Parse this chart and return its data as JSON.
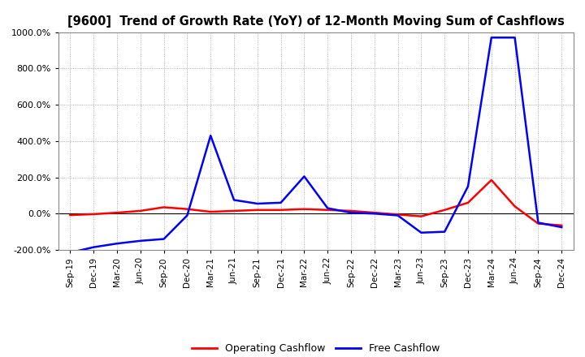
{
  "title": "[9600]  Trend of Growth Rate (YoY) of 12-Month Moving Sum of Cashflows",
  "ylim": [
    -200,
    1000
  ],
  "yticks": [
    -200,
    0,
    200,
    400,
    600,
    800,
    1000
  ],
  "background_color": "#ffffff",
  "grid_color": "#999999",
  "operating_color": "#ff0000",
  "free_color": "#0000ff",
  "legend_labels": [
    "Operating Cashflow",
    "Free Cashflow"
  ],
  "x_labels": [
    "Sep-19",
    "Dec-19",
    "Mar-20",
    "Jun-20",
    "Sep-20",
    "Dec-20",
    "Mar-21",
    "Jun-21",
    "Sep-21",
    "Dec-21",
    "Mar-22",
    "Jun-22",
    "Sep-22",
    "Dec-22",
    "Mar-23",
    "Jun-23",
    "Sep-23",
    "Dec-23",
    "Mar-24",
    "Jun-24",
    "Sep-24",
    "Dec-24"
  ],
  "operating_cashflow": [
    -8,
    -3,
    5,
    15,
    35,
    25,
    10,
    15,
    20,
    20,
    25,
    20,
    15,
    5,
    -5,
    -15,
    20,
    60,
    185,
    40,
    -55,
    -65
  ],
  "free_cashflow": [
    -215,
    -185,
    -165,
    -150,
    -140,
    -10,
    430,
    75,
    55,
    60,
    205,
    30,
    5,
    0,
    -10,
    -105,
    -100,
    150,
    970,
    970,
    -50,
    -75
  ]
}
